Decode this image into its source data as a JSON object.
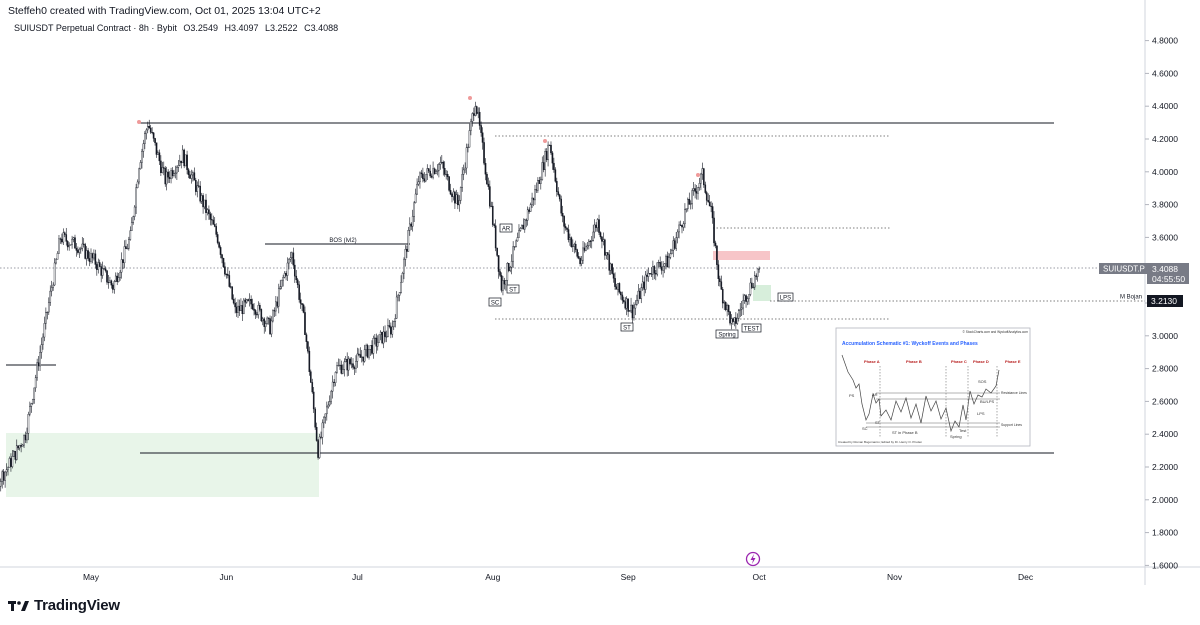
{
  "header": {
    "credit": "Steffeh0 created with TradingView.com, Oct 01, 2025 13:04 UTC+2",
    "symbol": "SUIUSDT Perpetual Contract · 8h · Bybit",
    "open": "O3.2549",
    "high": "H3.4097",
    "low": "L3.2522",
    "close": "C3.4088"
  },
  "price_axis": {
    "ticks": [
      "4.8000",
      "4.6000",
      "4.4000",
      "4.2000",
      "4.0000",
      "3.8000",
      "3.6000",
      "3.4000",
      "3.2000",
      "3.0000",
      "2.8000",
      "2.6000",
      "2.4000",
      "2.2000",
      "2.0000",
      "1.8000",
      "1.6000"
    ],
    "last_price_label": "SUIUSDT.P",
    "last_price": "3.4088",
    "countdown": "04:55:50",
    "line_value": "3.2130",
    "line_name": "M Bojan"
  },
  "time_axis": {
    "ticks": [
      "May",
      "Jun",
      "Jul",
      "Aug",
      "Sep",
      "Oct",
      "Nov",
      "Dec"
    ]
  },
  "annotations": {
    "bos": "BOS (lvl2)",
    "ar": "AR",
    "sc": "SC",
    "st1": "ST",
    "st2": "ST",
    "spring": "Spring",
    "test": "TEST",
    "lps": "LPS"
  },
  "inset": {
    "title": "Accumulation Schematic #1: Wyckoff Events and Phases",
    "copyright": "© StockCharts.com and WyckoffAnalytics.com",
    "phases": [
      "Phase A",
      "Phase B",
      "Phase C",
      "Phase D",
      "Phase E"
    ],
    "labels": {
      "ps": "PS",
      "ar": "AR",
      "st": "ST",
      "sc": "SC",
      "st_b": "ST in Phase B",
      "test": "Test",
      "spring": "Spring",
      "sos": "SOS",
      "bu_lps": "BU/LPS",
      "lps": "LPS",
      "resistance": "Resistance Lines",
      "support": "Support Lines"
    },
    "credit": "Created by Roman Bogomazov; Edited by Dr. Henry O. Pruden"
  },
  "colors": {
    "candle": "#131722",
    "demand_zone": "#e8f5e9",
    "supply_zone": "#f7c5c8",
    "lps_zone": "#d7eedb",
    "swing_marker": "#ef9a9a",
    "inset_title": "#2962ff",
    "inset_phase": "#b71c1c",
    "bojan_badge": "#131722",
    "last_badge": "#787b86",
    "logo_circle": "#9c27b0"
  },
  "logo": {
    "text": "TradingView"
  },
  "chart_data": {
    "type": "candlestick",
    "symbol": "SUIUSDT.P",
    "interval": "8h",
    "exchange": "Bybit",
    "ylim": [
      1.6,
      4.85
    ],
    "x_ticks": [
      "May",
      "Jun",
      "Jul",
      "Aug",
      "Sep",
      "Oct",
      "Nov",
      "Dec"
    ],
    "price_path": [
      [
        "2025-04-01",
        2.3
      ],
      [
        "2025-04-05",
        2.2
      ],
      [
        "2025-04-08",
        2.05
      ],
      [
        "2025-04-12",
        2.2
      ],
      [
        "2025-04-16",
        2.4
      ],
      [
        "2025-04-20",
        3.0
      ],
      [
        "2025-04-24",
        3.6
      ],
      [
        "2025-04-28",
        3.55
      ],
      [
        "2025-05-02",
        3.45
      ],
      [
        "2025-05-06",
        3.3
      ],
      [
        "2025-05-10",
        3.6
      ],
      [
        "2025-05-12",
        4.05
      ],
      [
        "2025-05-14",
        4.3
      ],
      [
        "2025-05-18",
        3.95
      ],
      [
        "2025-05-22",
        4.1
      ],
      [
        "2025-05-26",
        3.85
      ],
      [
        "2025-05-30",
        3.6
      ],
      [
        "2025-06-03",
        3.15
      ],
      [
        "2025-06-07",
        3.2
      ],
      [
        "2025-06-11",
        3.05
      ],
      [
        "2025-06-14",
        3.35
      ],
      [
        "2025-06-16",
        3.5
      ],
      [
        "2025-06-19",
        3.05
      ],
      [
        "2025-06-22",
        2.3
      ],
      [
        "2025-06-26",
        2.8
      ],
      [
        "2025-07-01",
        2.85
      ],
      [
        "2025-07-05",
        2.95
      ],
      [
        "2025-07-09",
        3.05
      ],
      [
        "2025-07-12",
        3.5
      ],
      [
        "2025-07-15",
        3.95
      ],
      [
        "2025-07-20",
        4.05
      ],
      [
        "2025-07-24",
        3.8
      ],
      [
        "2025-07-28",
        4.44
      ],
      [
        "2025-07-31",
        3.9
      ],
      [
        "2025-08-03",
        3.3
      ],
      [
        "2025-08-07",
        3.6
      ],
      [
        "2025-08-11",
        3.9
      ],
      [
        "2025-08-14",
        4.18
      ],
      [
        "2025-08-17",
        3.7
      ],
      [
        "2025-08-21",
        3.45
      ],
      [
        "2025-08-25",
        3.7
      ],
      [
        "2025-08-29",
        3.3
      ],
      [
        "2025-09-02",
        3.15
      ],
      [
        "2025-09-06",
        3.4
      ],
      [
        "2025-09-10",
        3.45
      ],
      [
        "2025-09-14",
        3.75
      ],
      [
        "2025-09-18",
        3.98
      ],
      [
        "2025-09-20",
        3.75
      ],
      [
        "2025-09-22",
        3.3
      ],
      [
        "2025-09-25",
        3.05
      ],
      [
        "2025-09-28",
        3.25
      ],
      [
        "2025-10-01",
        3.41
      ]
    ],
    "levels": [
      {
        "name": "range high",
        "value": 4.3,
        "style": "solid"
      },
      {
        "name": "range low",
        "value": 2.29,
        "style": "solid"
      },
      {
        "name": "BOS (lvl2)",
        "value": 3.57,
        "style": "solid"
      },
      {
        "value": 4.22,
        "style": "dotted"
      },
      {
        "value": 3.66,
        "style": "dotted"
      },
      {
        "value": 3.1,
        "style": "dotted"
      },
      {
        "name": "M Bojan",
        "value": 3.213,
        "style": "dotted"
      },
      {
        "value": 2.82,
        "style": "solid"
      }
    ],
    "zones": [
      {
        "name": "demand",
        "from": 2.02,
        "to": 2.42
      },
      {
        "name": "supply",
        "from": 3.47,
        "to": 3.52
      },
      {
        "name": "LPS",
        "from": 3.21,
        "to": 3.31
      }
    ],
    "last": {
      "open": 3.2549,
      "high": 3.4097,
      "low": 3.2522,
      "close": 3.4088
    }
  }
}
